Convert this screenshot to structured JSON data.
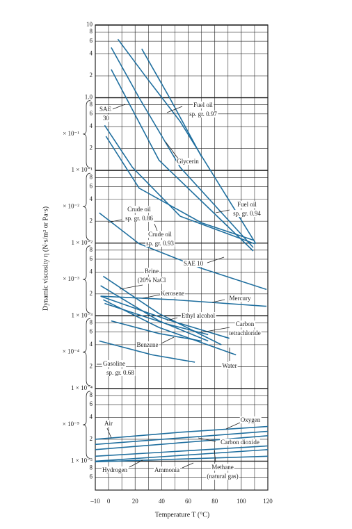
{
  "chart_data": {
    "type": "line",
    "xlabel": "Temperature T (°C)",
    "ylabel": "Dynamic viscosity η (N·s/m² or Pa·s)",
    "log_y": true,
    "grid": true,
    "color": "#1f6f9f",
    "xlim": [
      -10,
      120
    ],
    "ylim": [
      4e-06,
      10
    ],
    "xticks": [
      {
        "value": -10,
        "label": "–10"
      },
      0,
      20,
      40,
      60,
      80,
      100,
      120
    ],
    "xminor": [
      10,
      30,
      50,
      70,
      90,
      110
    ],
    "yticks": [
      10,
      8,
      6,
      4,
      2,
      {
        "value": 1,
        "label": "1.0"
      },
      {
        "value": 0.8,
        "label": "8"
      },
      {
        "value": 0.6,
        "label": "6"
      },
      {
        "value": 0.4,
        "label": "4"
      },
      {
        "value": 0.2,
        "label": "2"
      },
      {
        "value": 0.1,
        "label": "1 × 10⁻¹"
      },
      {
        "value": 0.08,
        "label": "8"
      },
      {
        "value": 0.06,
        "label": "6"
      },
      {
        "value": 0.04,
        "label": "4"
      },
      {
        "value": 0.02,
        "label": "2"
      },
      {
        "value": 0.01,
        "label": "1 × 10⁻²"
      },
      {
        "value": 0.008,
        "label": "8"
      },
      {
        "value": 0.006,
        "label": "6"
      },
      {
        "value": 0.004,
        "label": "4"
      },
      {
        "value": 0.002,
        "label": "2"
      },
      {
        "value": 0.001,
        "label": "1 × 10⁻³"
      },
      {
        "value": 0.0008,
        "label": "8"
      },
      {
        "value": 0.0006,
        "label": "6"
      },
      {
        "value": 0.0004,
        "label": "4"
      },
      {
        "value": 0.0002,
        "label": "2"
      },
      {
        "value": 0.0001,
        "label": "1 × 10⁻⁴"
      },
      {
        "value": 8e-05,
        "label": "8"
      },
      {
        "value": 6e-05,
        "label": "6"
      },
      {
        "value": 4e-05,
        "label": "4"
      },
      {
        "value": 2e-05,
        "label": "2"
      },
      {
        "value": 1e-05,
        "label": "1 × 10⁻⁵"
      },
      {
        "value": 8e-06,
        "label": "8"
      },
      {
        "value": 6e-06,
        "label": "6"
      }
    ],
    "decade_labels": [
      "× 10⁻¹",
      "× 10⁻²",
      "× 10⁻³",
      "× 10⁻⁴",
      "× 10⁻⁵"
    ],
    "series": [
      {
        "name": [
          "Fuel oil",
          "sp. gr. 0.97"
        ],
        "x": [
          7,
          28,
          54,
          111
        ],
        "values": [
          6.4,
          1.95,
          0.47,
          0.0098
        ]
      },
      {
        "name": [
          "Glycerin"
        ],
        "x": [
          25,
          46,
          70
        ],
        "values": [
          4.7,
          1.0,
          0.155
        ]
      },
      {
        "name": [
          "SAE",
          "30"
        ],
        "x": [
          2,
          23,
          54,
          109
        ],
        "values": [
          4.9,
          1.0,
          0.11,
          0.0087
        ]
      },
      {
        "name": [
          "Fuel oil",
          "sp. gr. 0.94"
        ],
        "x": [
          2,
          38,
          109
        ],
        "values": [
          2.45,
          0.138,
          0.0078
        ]
      },
      {
        "name": [
          "Crude oil",
          "sp. gr. 0.86"
        ],
        "x": [
          -3,
          18,
          54,
          110
        ],
        "values": [
          0.417,
          0.11,
          0.0234,
          0.0098
        ]
      },
      {
        "name": [
          "Crude oil",
          "sp. gr. 0.93"
        ],
        "x": [
          -2,
          23,
          70,
          109
        ],
        "values": [
          0.295,
          0.057,
          0.019,
          0.011
        ]
      },
      {
        "name": [
          "SAE 10"
        ],
        "x": [
          -7,
          23,
          70,
          119
        ],
        "values": [
          0.026,
          0.0098,
          0.0045,
          0.0023
        ]
      },
      {
        "name": [
          "Brine",
          "(20% NaCl"
        ],
        "x": [
          -4,
          38,
          85
        ],
        "values": [
          0.0035,
          0.00107,
          0.0004
        ]
      },
      {
        "name": [
          "Kerosene"
        ],
        "x": [
          -6,
          38,
          75
        ],
        "values": [
          0.0026,
          0.00085,
          0.00045
        ]
      },
      {
        "name": [
          "Mercury"
        ],
        "x": [
          -6,
          49,
          119
        ],
        "values": [
          0.00186,
          0.00166,
          0.00135
        ]
      },
      {
        "name": [
          "Ethyl alcohol"
        ],
        "x": [
          -6,
          44,
          91
        ],
        "values": [
          0.00186,
          0.00089,
          0.00049
        ]
      },
      {
        "name": [
          "Carbon",
          "tetrachloride"
        ],
        "x": [
          -3,
          44,
          75
        ],
        "values": [
          0.00148,
          0.00077,
          0.00055
        ]
      },
      {
        "name": [
          "Benzene"
        ],
        "x": [
          2,
          38,
          70
        ],
        "values": [
          0.00085,
          0.00057,
          0.00045
        ]
      },
      {
        "name": [
          "Water"
        ],
        "x": [
          -4,
          38,
          96
        ],
        "values": [
          0.00166,
          0.00069,
          0.00029
        ]
      },
      {
        "name": [
          "Gasoline",
          "sp. gr. 0.68"
        ],
        "x": [
          -7,
          33,
          65
        ],
        "values": [
          0.00045,
          0.00029,
          0.00023
        ]
      },
      {
        "name": [
          "Oxygen"
        ],
        "x": [
          -10,
          54,
          120
        ],
        "values": [
          2e-05,
          2.5e-05,
          3e-05
        ]
      },
      {
        "name": [
          "Air"
        ],
        "x": [
          -10,
          120
        ],
        "values": [
          1.7e-05,
          2.57e-05
        ]
      },
      {
        "name": [
          "Carbon dioxide"
        ],
        "x": [
          -10,
          120
        ],
        "values": [
          1.44e-05,
          2.24e-05
        ]
      },
      {
        "name": [
          "Methane",
          "(natural gas)"
        ],
        "x": [
          -10,
          120
        ],
        "values": [
          1.17e-05,
          1.62e-05
        ]
      },
      {
        "name": [
          "Ammonia"
        ],
        "x": [
          -10,
          120
        ],
        "values": [
          1e-05,
          1.44e-05
        ]
      },
      {
        "name": [
          "Hydrogen"
        ],
        "x": [
          -10,
          120
        ],
        "values": [
          9.8e-06,
          1.17e-05
        ]
      }
    ]
  }
}
